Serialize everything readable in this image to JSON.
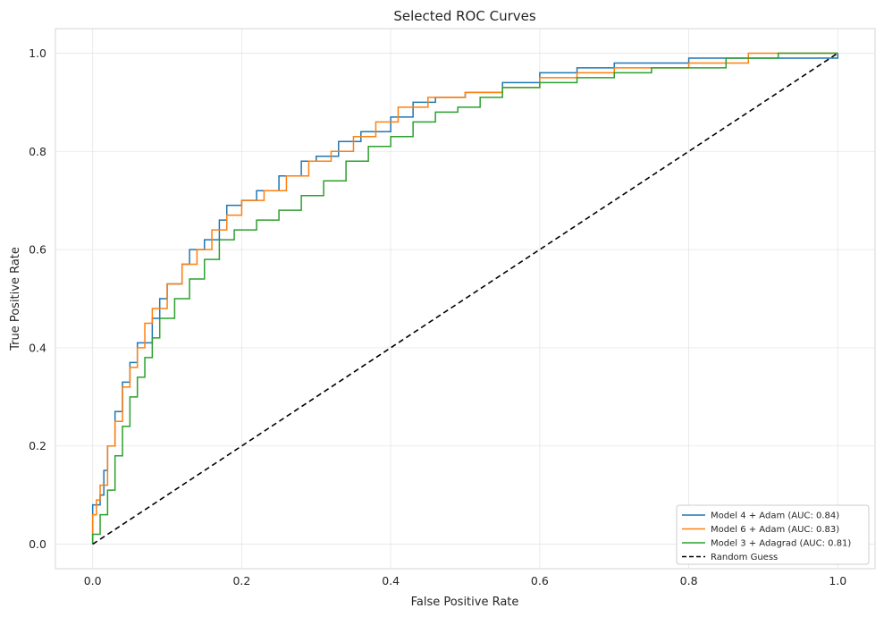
{
  "chart_data": {
    "type": "line",
    "title": "Selected ROC Curves",
    "xlabel": "False Positive Rate",
    "ylabel": "True Positive Rate",
    "xlim": [
      -0.05,
      1.05
    ],
    "ylim": [
      -0.05,
      1.05
    ],
    "xticks": [
      "0.0",
      "0.2",
      "0.4",
      "0.6",
      "0.8",
      "1.0"
    ],
    "yticks": [
      "0.0",
      "0.2",
      "0.4",
      "0.6",
      "0.8",
      "1.0"
    ],
    "grid": true,
    "legend_position": "bottom-right",
    "series": [
      {
        "name": "Model 4 + Adam (AUC: 0.84)",
        "color": "#1f77b4",
        "dashed": false,
        "points": [
          [
            0,
            0
          ],
          [
            0,
            0.08
          ],
          [
            0.01,
            0.1
          ],
          [
            0.015,
            0.15
          ],
          [
            0.02,
            0.2
          ],
          [
            0.03,
            0.27
          ],
          [
            0.04,
            0.33
          ],
          [
            0.05,
            0.37
          ],
          [
            0.06,
            0.41
          ],
          [
            0.08,
            0.46
          ],
          [
            0.09,
            0.5
          ],
          [
            0.1,
            0.53
          ],
          [
            0.12,
            0.57
          ],
          [
            0.13,
            0.6
          ],
          [
            0.15,
            0.62
          ],
          [
            0.17,
            0.66
          ],
          [
            0.18,
            0.69
          ],
          [
            0.2,
            0.7
          ],
          [
            0.22,
            0.72
          ],
          [
            0.25,
            0.75
          ],
          [
            0.28,
            0.78
          ],
          [
            0.3,
            0.79
          ],
          [
            0.33,
            0.82
          ],
          [
            0.36,
            0.84
          ],
          [
            0.4,
            0.87
          ],
          [
            0.43,
            0.9
          ],
          [
            0.46,
            0.91
          ],
          [
            0.5,
            0.92
          ],
          [
            0.55,
            0.94
          ],
          [
            0.6,
            0.96
          ],
          [
            0.65,
            0.97
          ],
          [
            0.7,
            0.98
          ],
          [
            0.8,
            0.99
          ],
          [
            0.9,
            0.99
          ],
          [
            1.0,
            1.0
          ]
        ]
      },
      {
        "name": "Model 6 + Adam (AUC: 0.83)",
        "color": "#ff7f0e",
        "dashed": false,
        "points": [
          [
            0,
            0
          ],
          [
            0,
            0.06
          ],
          [
            0.005,
            0.09
          ],
          [
            0.01,
            0.12
          ],
          [
            0.02,
            0.2
          ],
          [
            0.03,
            0.25
          ],
          [
            0.04,
            0.32
          ],
          [
            0.05,
            0.36
          ],
          [
            0.06,
            0.4
          ],
          [
            0.07,
            0.45
          ],
          [
            0.08,
            0.48
          ],
          [
            0.1,
            0.53
          ],
          [
            0.12,
            0.57
          ],
          [
            0.14,
            0.6
          ],
          [
            0.16,
            0.64
          ],
          [
            0.18,
            0.67
          ],
          [
            0.2,
            0.7
          ],
          [
            0.23,
            0.72
          ],
          [
            0.26,
            0.75
          ],
          [
            0.29,
            0.78
          ],
          [
            0.32,
            0.8
          ],
          [
            0.35,
            0.83
          ],
          [
            0.38,
            0.86
          ],
          [
            0.41,
            0.89
          ],
          [
            0.45,
            0.91
          ],
          [
            0.5,
            0.92
          ],
          [
            0.55,
            0.93
          ],
          [
            0.6,
            0.95
          ],
          [
            0.65,
            0.96
          ],
          [
            0.7,
            0.97
          ],
          [
            0.8,
            0.98
          ],
          [
            0.88,
            1.0
          ],
          [
            1.0,
            1.0
          ]
        ]
      },
      {
        "name": "Model 3 + Adagrad (AUC: 0.81)",
        "color": "#2ca02c",
        "dashed": false,
        "points": [
          [
            0,
            0
          ],
          [
            0,
            0.02
          ],
          [
            0.01,
            0.06
          ],
          [
            0.02,
            0.11
          ],
          [
            0.03,
            0.18
          ],
          [
            0.04,
            0.24
          ],
          [
            0.05,
            0.3
          ],
          [
            0.06,
            0.34
          ],
          [
            0.07,
            0.38
          ],
          [
            0.08,
            0.42
          ],
          [
            0.09,
            0.46
          ],
          [
            0.11,
            0.5
          ],
          [
            0.13,
            0.54
          ],
          [
            0.15,
            0.58
          ],
          [
            0.17,
            0.62
          ],
          [
            0.19,
            0.64
          ],
          [
            0.22,
            0.66
          ],
          [
            0.25,
            0.68
          ],
          [
            0.28,
            0.71
          ],
          [
            0.31,
            0.74
          ],
          [
            0.34,
            0.78
          ],
          [
            0.37,
            0.81
          ],
          [
            0.4,
            0.83
          ],
          [
            0.43,
            0.86
          ],
          [
            0.46,
            0.88
          ],
          [
            0.49,
            0.89
          ],
          [
            0.52,
            0.91
          ],
          [
            0.55,
            0.93
          ],
          [
            0.6,
            0.94
          ],
          [
            0.65,
            0.95
          ],
          [
            0.7,
            0.96
          ],
          [
            0.75,
            0.97
          ],
          [
            0.85,
            0.99
          ],
          [
            0.92,
            1.0
          ],
          [
            1.0,
            1.0
          ]
        ]
      },
      {
        "name": "Random Guess",
        "color": "#000000",
        "dashed": true,
        "points": [
          [
            0,
            0
          ],
          [
            1,
            1
          ]
        ]
      }
    ]
  }
}
